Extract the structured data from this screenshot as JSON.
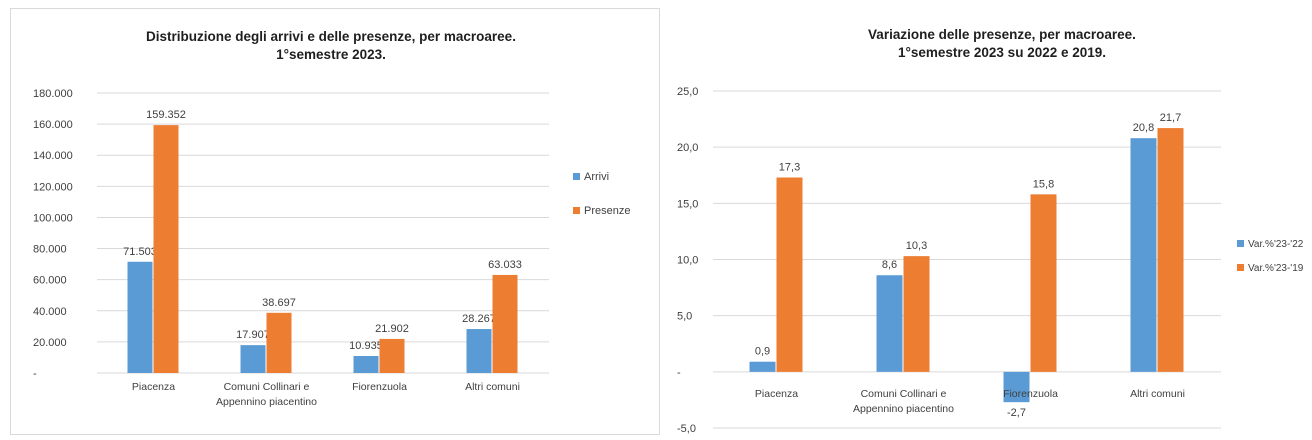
{
  "colors": {
    "arrivi": "#5b9bd5",
    "presenze": "#ed7d31",
    "grid": "#d9d9d9"
  },
  "chart_data": [
    {
      "type": "bar",
      "title": [
        "Distribuzione degli arrivi e delle presenze, per macroaree.",
        "1°semestre 2023."
      ],
      "categories": [
        [
          "Piacenza"
        ],
        [
          "Comuni Collinari e",
          "Appennino piacentino"
        ],
        [
          "Fiorenzuola"
        ],
        [
          "Altri comuni"
        ]
      ],
      "series": [
        {
          "name": "Arrivi",
          "values": [
            71503,
            17907,
            10935,
            28267
          ],
          "labels": [
            "71.503",
            "17.907",
            "10.935",
            "28.267"
          ]
        },
        {
          "name": "Presenze",
          "values": [
            159352,
            38697,
            21902,
            63033
          ],
          "labels": [
            "159.352",
            "38.697",
            "21.902",
            "63.033"
          ]
        }
      ],
      "ylim": [
        0,
        180000
      ],
      "yticks": [
        "-",
        "20.000",
        "40.000",
        "60.000",
        "80.000",
        "100.000",
        "120.000",
        "140.000",
        "160.000",
        "180.000"
      ],
      "grid": true,
      "legend": "right"
    },
    {
      "type": "bar",
      "title": [
        "Variazione delle presenze, per macroaree.",
        "1°semestre 2023 su 2022 e 2019."
      ],
      "categories": [
        [
          "Piacenza"
        ],
        [
          "Comuni Collinari e",
          "Appennino piacentino"
        ],
        [
          "Fiorenzuola"
        ],
        [
          "Altri comuni"
        ]
      ],
      "series": [
        {
          "name": "Var.%'23-'22",
          "values": [
            0.9,
            8.6,
            -2.7,
            20.8
          ],
          "labels": [
            "0,9",
            "8,6",
            "-2,7",
            "20,8"
          ]
        },
        {
          "name": "Var.%'23-'19",
          "values": [
            17.3,
            10.3,
            15.8,
            21.7
          ],
          "labels": [
            "17,3",
            "10,3",
            "15,8",
            "21,7"
          ]
        }
      ],
      "ylim": [
        -5,
        25
      ],
      "yticks": [
        "-5,0",
        "-",
        "5,0",
        "10,0",
        "15,0",
        "20,0",
        "25,0"
      ],
      "grid": true,
      "legend": "right"
    }
  ]
}
